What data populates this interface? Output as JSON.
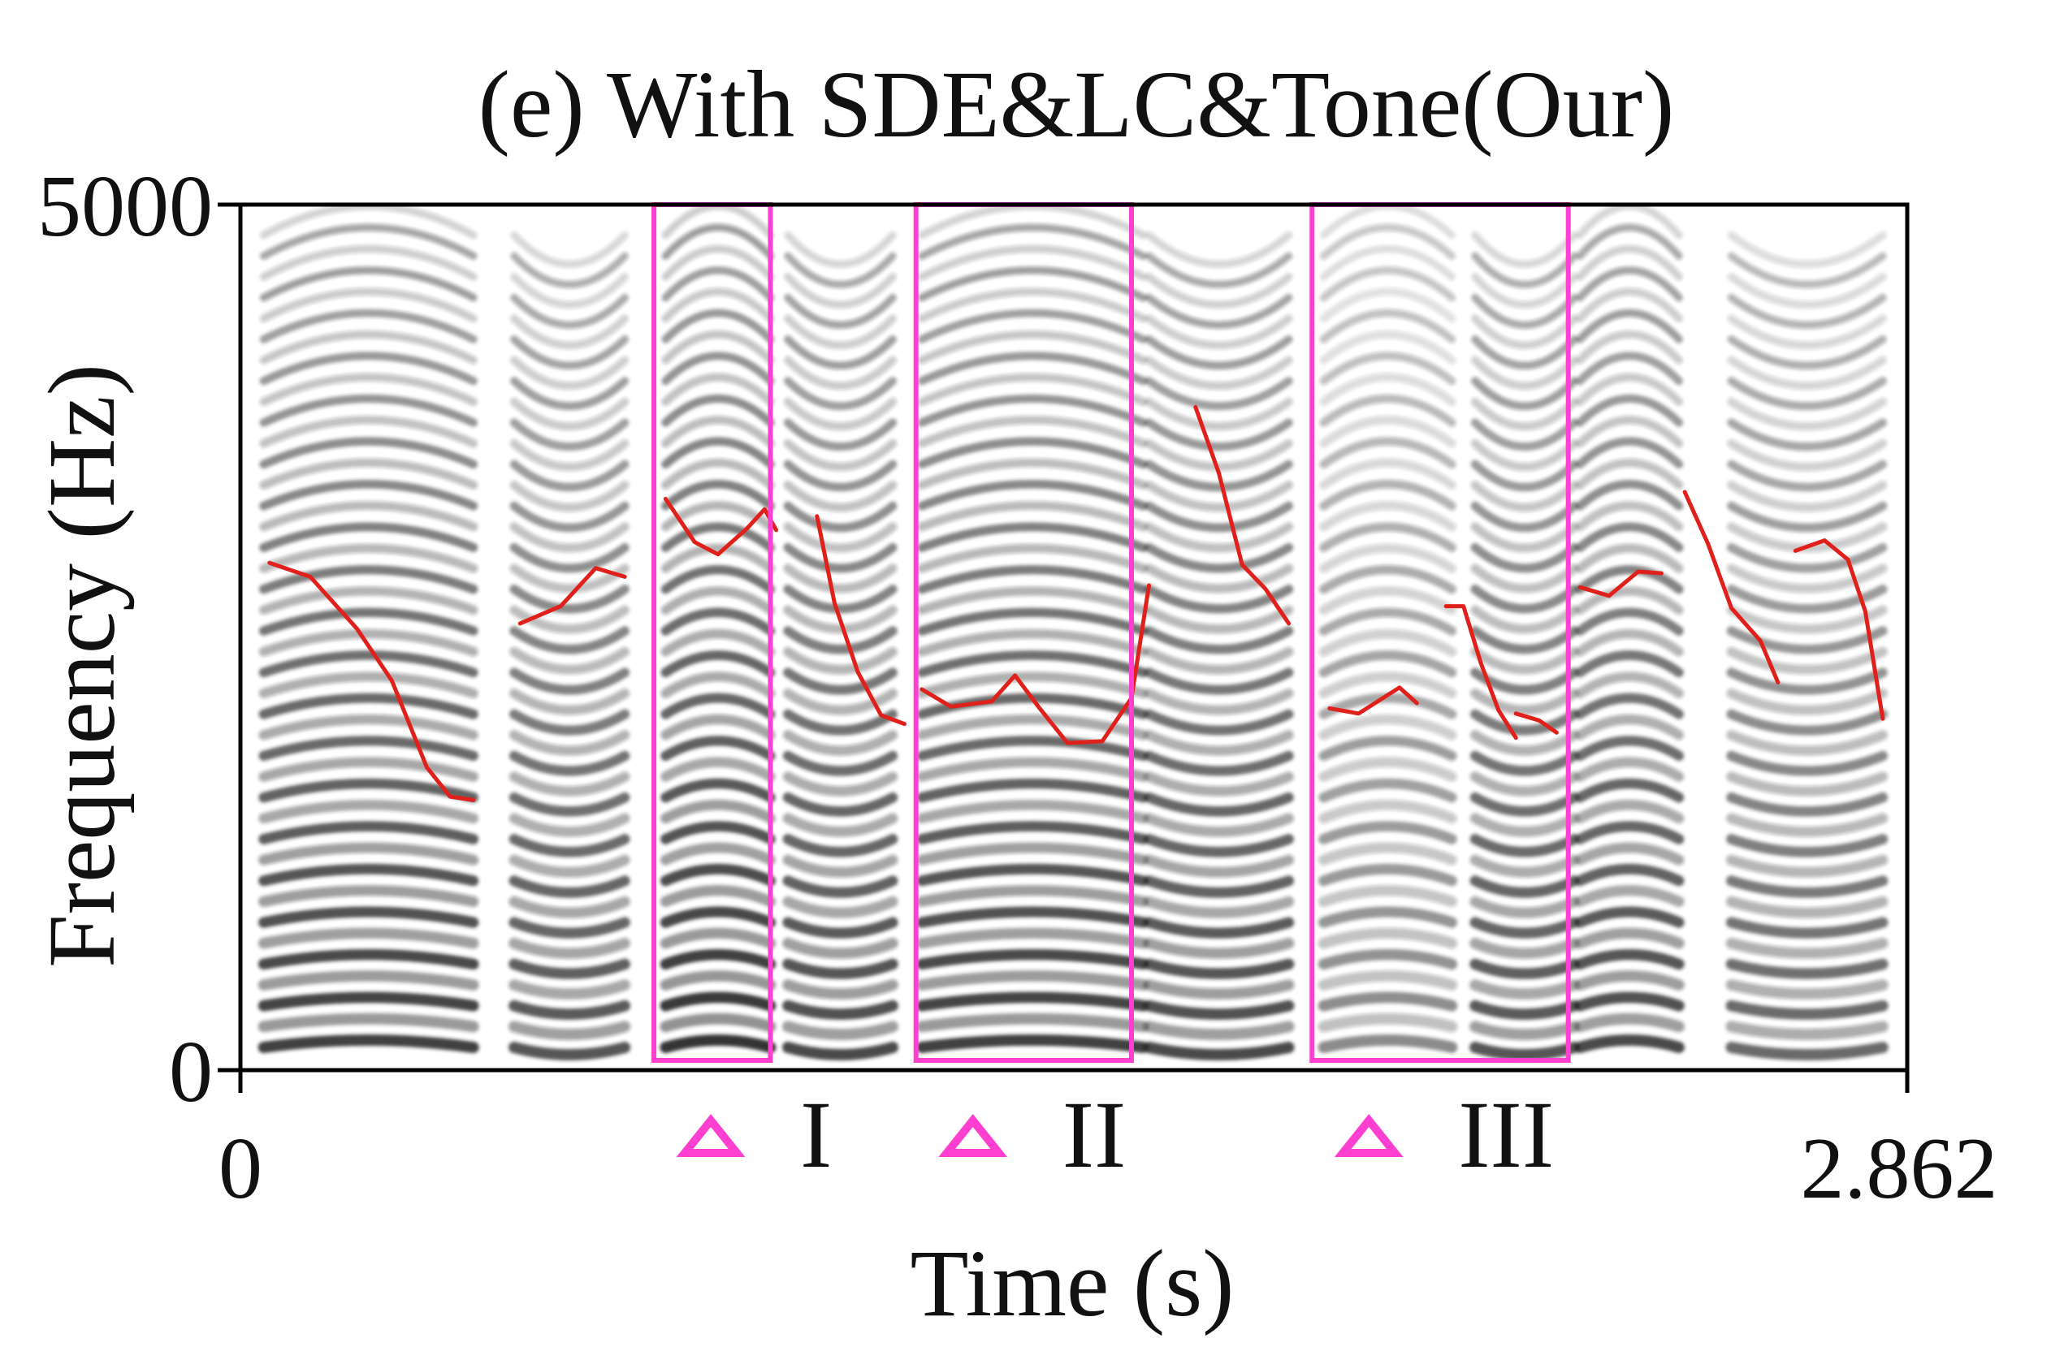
{
  "chart_data": {
    "type": "spectrogram",
    "title": "(e) With SDE&LC&Tone(Our)",
    "xlabel": "Time (s)",
    "ylabel": "Frequency (Hz)",
    "xlim": [
      0,
      2.862
    ],
    "ylim": [
      0,
      5000
    ],
    "x_ticks": [
      {
        "value": 0,
        "label": "0"
      },
      {
        "value": 2.862,
        "label": "2.862"
      }
    ],
    "y_ticks": [
      {
        "value": 0,
        "label": "0"
      },
      {
        "value": 5000,
        "label": "5000"
      }
    ],
    "colors": {
      "pitch_contour": "#e0201a",
      "highlight": "#ff3fd0",
      "spectrogram": "#202020",
      "axis": "#000000"
    },
    "segments": [
      {
        "start": 0.04,
        "end": 0.4,
        "intensity": 0.9
      },
      {
        "start": 0.47,
        "end": 0.66,
        "intensity": 0.8
      },
      {
        "start": 0.73,
        "end": 0.91,
        "intensity": 0.95
      },
      {
        "start": 0.94,
        "end": 1.12,
        "intensity": 0.85
      },
      {
        "start": 1.17,
        "end": 1.55,
        "intensity": 0.9
      },
      {
        "start": 1.56,
        "end": 1.8,
        "intensity": 0.85
      },
      {
        "start": 1.86,
        "end": 2.08,
        "intensity": 0.55
      },
      {
        "start": 2.12,
        "end": 2.29,
        "intensity": 0.8
      },
      {
        "start": 2.3,
        "end": 2.47,
        "intensity": 0.85
      },
      {
        "start": 2.56,
        "end": 2.82,
        "intensity": 0.7
      }
    ],
    "pitch_contours": [
      [
        [
          0.05,
          2930
        ],
        [
          0.12,
          2850
        ],
        [
          0.2,
          2550
        ],
        [
          0.26,
          2250
        ],
        [
          0.32,
          1750
        ],
        [
          0.36,
          1580
        ],
        [
          0.4,
          1560
        ]
      ],
      [
        [
          0.48,
          2580
        ],
        [
          0.55,
          2680
        ],
        [
          0.61,
          2900
        ],
        [
          0.66,
          2850
        ]
      ],
      [
        [
          0.73,
          3300
        ],
        [
          0.78,
          3050
        ],
        [
          0.82,
          2980
        ],
        [
          0.87,
          3130
        ],
        [
          0.9,
          3240
        ],
        [
          0.92,
          3120
        ]
      ],
      [
        [
          0.99,
          3200
        ],
        [
          1.02,
          2700
        ],
        [
          1.06,
          2300
        ],
        [
          1.1,
          2050
        ],
        [
          1.14,
          2000
        ]
      ],
      [
        [
          1.17,
          2200
        ],
        [
          1.22,
          2100
        ],
        [
          1.29,
          2130
        ],
        [
          1.33,
          2280
        ],
        [
          1.37,
          2100
        ],
        [
          1.42,
          1890
        ],
        [
          1.48,
          1900
        ],
        [
          1.53,
          2150
        ],
        [
          1.56,
          2800
        ]
      ],
      [
        [
          1.64,
          3830
        ],
        [
          1.68,
          3450
        ],
        [
          1.72,
          2920
        ],
        [
          1.76,
          2780
        ],
        [
          1.8,
          2580
        ]
      ],
      [
        [
          1.87,
          2090
        ],
        [
          1.92,
          2060
        ],
        [
          1.99,
          2210
        ],
        [
          2.02,
          2120
        ]
      ],
      [
        [
          2.07,
          2680
        ],
        [
          2.1,
          2680
        ],
        [
          2.13,
          2350
        ],
        [
          2.16,
          2080
        ],
        [
          2.19,
          1920
        ]
      ],
      [
        [
          2.19,
          2060
        ],
        [
          2.23,
          2020
        ],
        [
          2.26,
          1950
        ]
      ],
      [
        [
          2.3,
          2790
        ],
        [
          2.35,
          2740
        ],
        [
          2.4,
          2880
        ],
        [
          2.44,
          2870
        ]
      ],
      [
        [
          2.48,
          3340
        ],
        [
          2.52,
          3040
        ],
        [
          2.56,
          2670
        ],
        [
          2.61,
          2480
        ],
        [
          2.64,
          2240
        ]
      ],
      [
        [
          2.67,
          3000
        ],
        [
          2.72,
          3060
        ],
        [
          2.76,
          2950
        ],
        [
          2.79,
          2650
        ],
        [
          2.82,
          2030
        ]
      ]
    ],
    "highlight_boxes": [
      {
        "label": "I",
        "start": 0.71,
        "end": 0.91
      },
      {
        "label": "II",
        "start": 1.16,
        "end": 1.53
      },
      {
        "label": "III",
        "start": 1.84,
        "end": 2.28
      }
    ]
  }
}
